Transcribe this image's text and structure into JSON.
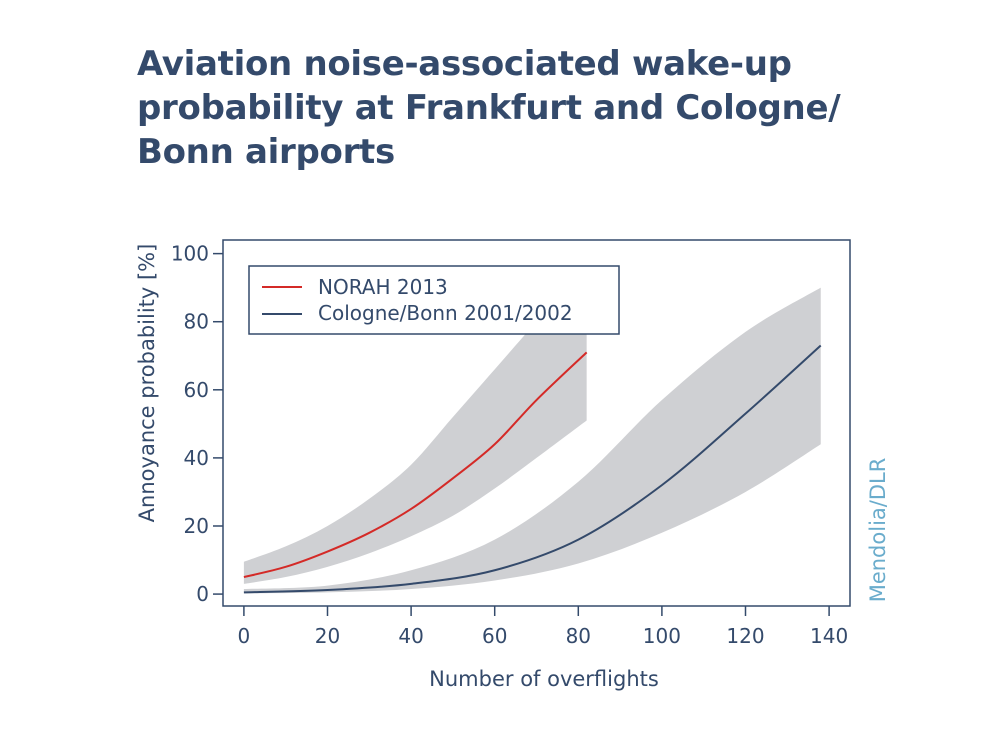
{
  "title_lines": [
    "Aviation noise-associated wake-up",
    "probability at Frankfurt and Cologne/",
    "Bonn airports"
  ],
  "credit": "Mendolia/DLR",
  "colors": {
    "text": "#344a6b",
    "band": "#cfd0d3",
    "norah": "#d42a27",
    "cologne": "#344a6b",
    "credit": "#6aaccc"
  },
  "chart_data": {
    "type": "line",
    "xlabel": "Number of overflights",
    "ylabel": "Annoyance probability [%]",
    "xlim": [
      -5,
      145
    ],
    "ylim": [
      -3.5,
      104
    ],
    "xticks": [
      0,
      20,
      40,
      60,
      80,
      100,
      120,
      140
    ],
    "yticks": [
      0,
      20,
      40,
      60,
      80,
      100
    ],
    "legend_position": "top-left",
    "series": [
      {
        "name": "NORAH 2013",
        "color": "#d42a27",
        "x": [
          0,
          10,
          20,
          30,
          40,
          50,
          60,
          70,
          82
        ],
        "y": [
          5,
          8,
          12.5,
          18,
          25,
          34,
          44,
          57,
          71
        ],
        "lower": [
          3,
          5,
          8,
          12,
          17,
          23,
          31,
          40,
          51
        ],
        "upper": [
          9.5,
          14,
          20,
          28,
          38,
          52,
          66,
          80,
          96
        ]
      },
      {
        "name": "Cologne/Bonn 2001/2002",
        "color": "#344a6b",
        "x": [
          0,
          20,
          40,
          60,
          80,
          100,
          120,
          138
        ],
        "y": [
          0.5,
          1.2,
          3,
          7,
          16,
          32,
          53,
          73
        ],
        "lower": [
          0.2,
          0.5,
          1.5,
          4,
          9,
          18,
          30,
          44
        ],
        "upper": [
          1.5,
          2.5,
          7,
          16,
          33,
          57,
          77,
          90
        ]
      }
    ]
  }
}
